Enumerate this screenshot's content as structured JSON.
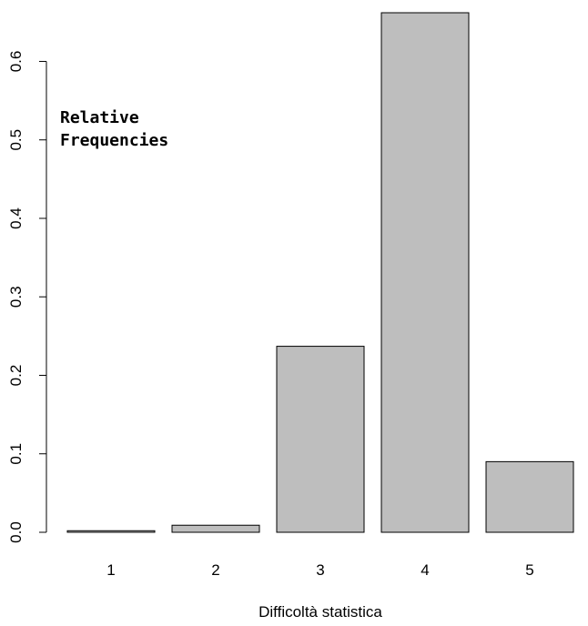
{
  "chart_data": {
    "type": "bar",
    "title": "",
    "xlabel": "Difficoltà statistica",
    "ylabel": "",
    "categories": [
      "1",
      "2",
      "3",
      "4",
      "5"
    ],
    "values": [
      0.002,
      0.009,
      0.237,
      0.662,
      0.09
    ],
    "ylim": [
      0,
      0.662
    ],
    "yticks": [
      0.0,
      0.1,
      0.2,
      0.3,
      0.4,
      0.5,
      0.6
    ],
    "ytick_labels": [
      "0.0",
      "0.1",
      "0.2",
      "0.3",
      "0.4",
      "0.5",
      "0.6"
    ],
    "annotation": [
      "Relative",
      "Frequencies"
    ],
    "bar_fill": "#bebebe",
    "bar_stroke": "#000000",
    "grid": false
  }
}
